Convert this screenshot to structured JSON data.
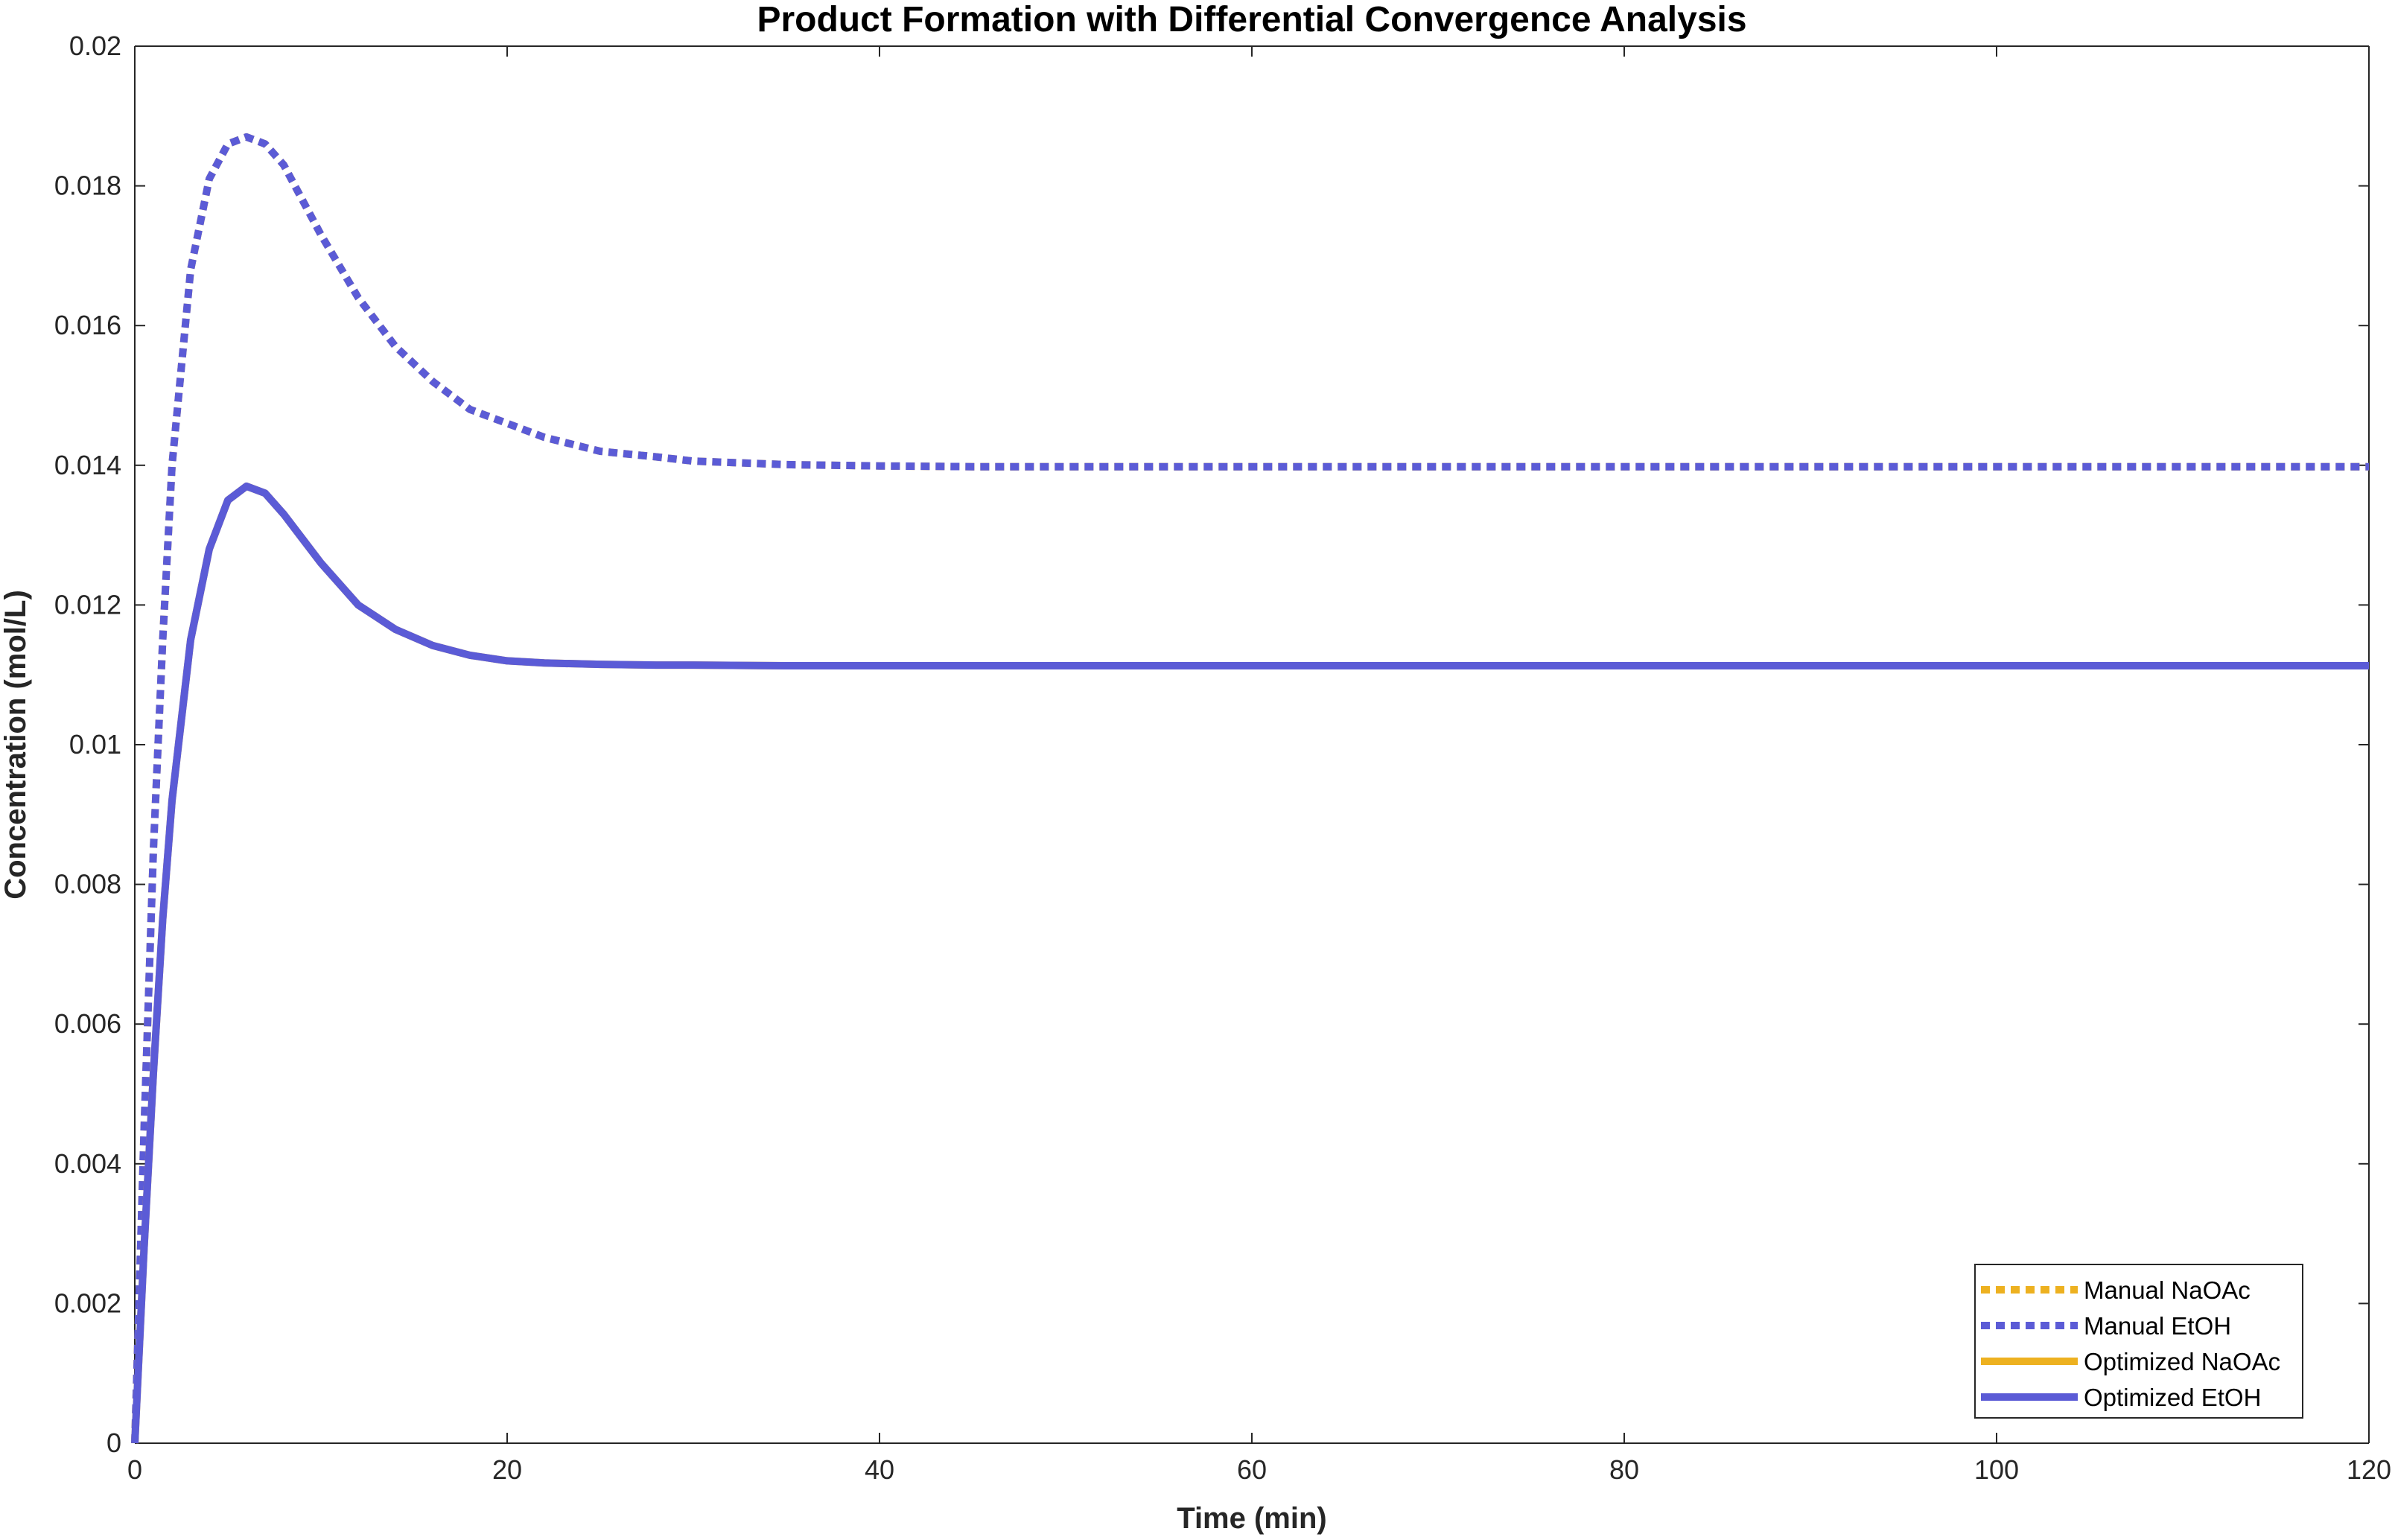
{
  "chart_data": {
    "type": "line",
    "title": "Product Formation with Differential Convergence Analysis",
    "xlabel": "Time (min)",
    "ylabel": "Concentration (mol/L)",
    "xlim": [
      0,
      120
    ],
    "ylim": [
      0,
      0.02
    ],
    "xticks": [
      0,
      20,
      40,
      60,
      80,
      100,
      120
    ],
    "xtick_labels": [
      "0",
      "20",
      "40",
      "60",
      "80",
      "100",
      "120"
    ],
    "yticks": [
      0,
      0.002,
      0.004,
      0.006,
      0.008,
      0.01,
      0.012,
      0.014,
      0.016,
      0.018,
      0.02
    ],
    "ytick_labels": [
      "0",
      "0.002",
      "0.004",
      "0.006",
      "0.008",
      "0.01",
      "0.012",
      "0.014",
      "0.016",
      "0.018",
      "0.02"
    ],
    "grid": false,
    "legend_position": "bottom-right",
    "series": [
      {
        "name": "Manual NaOAc",
        "color": "#EDB120",
        "style": "dotted",
        "x": [
          0,
          0.5,
          1,
          1.5,
          2,
          3,
          4,
          5,
          6,
          7,
          8,
          9,
          10,
          12,
          14,
          16,
          18,
          20,
          22,
          25,
          28,
          30,
          35,
          40,
          45,
          50,
          60,
          70,
          80,
          90,
          100,
          110,
          120
        ],
        "y": [
          0,
          0.0045,
          0.0085,
          0.0115,
          0.014,
          0.0168,
          0.0181,
          0.0186,
          0.0187,
          0.0186,
          0.0183,
          0.0178,
          0.0173,
          0.0164,
          0.0157,
          0.0152,
          0.0148,
          0.0146,
          0.0144,
          0.0142,
          0.01412,
          0.01406,
          0.01401,
          0.01399,
          0.01398,
          0.01398,
          0.01398,
          0.01398,
          0.01398,
          0.01398,
          0.01398,
          0.01398,
          0.01398
        ]
      },
      {
        "name": "Manual EtOH",
        "color": "#5B5BD6",
        "style": "dotted",
        "x": [
          0,
          0.5,
          1,
          1.5,
          2,
          3,
          4,
          5,
          6,
          7,
          8,
          9,
          10,
          12,
          14,
          16,
          18,
          20,
          22,
          25,
          28,
          30,
          35,
          40,
          45,
          50,
          60,
          70,
          80,
          90,
          100,
          110,
          120
        ],
        "y": [
          0,
          0.0045,
          0.0085,
          0.0115,
          0.014,
          0.0168,
          0.0181,
          0.0186,
          0.0187,
          0.0186,
          0.0183,
          0.0178,
          0.0173,
          0.0164,
          0.0157,
          0.0152,
          0.0148,
          0.0146,
          0.0144,
          0.0142,
          0.01412,
          0.01406,
          0.01401,
          0.01399,
          0.01398,
          0.01398,
          0.01398,
          0.01398,
          0.01398,
          0.01398,
          0.01398,
          0.01398,
          0.01398
        ]
      },
      {
        "name": "Optimized NaOAc",
        "color": "#EDB120",
        "style": "solid",
        "x": [
          0,
          0.5,
          1,
          1.5,
          2,
          3,
          4,
          5,
          6,
          7,
          8,
          9,
          10,
          12,
          14,
          16,
          18,
          20,
          22,
          25,
          28,
          30,
          35,
          40,
          45,
          50,
          60,
          70,
          80,
          90,
          100,
          110,
          120
        ],
        "y": [
          0,
          0.0028,
          0.0053,
          0.0075,
          0.0092,
          0.0115,
          0.0128,
          0.0135,
          0.0137,
          0.0136,
          0.0133,
          0.01295,
          0.0126,
          0.012,
          0.01165,
          0.01142,
          0.01128,
          0.0112,
          0.01117,
          0.01115,
          0.01114,
          0.01114,
          0.01113,
          0.01113,
          0.01113,
          0.01113,
          0.01113,
          0.01113,
          0.01113,
          0.01113,
          0.01113,
          0.01113,
          0.01113
        ]
      },
      {
        "name": "Optimized EtOH",
        "color": "#5B5BD6",
        "style": "solid",
        "x": [
          0,
          0.5,
          1,
          1.5,
          2,
          3,
          4,
          5,
          6,
          7,
          8,
          9,
          10,
          12,
          14,
          16,
          18,
          20,
          22,
          25,
          28,
          30,
          35,
          40,
          45,
          50,
          60,
          70,
          80,
          90,
          100,
          110,
          120
        ],
        "y": [
          0,
          0.0028,
          0.0053,
          0.0075,
          0.0092,
          0.0115,
          0.0128,
          0.0135,
          0.0137,
          0.0136,
          0.0133,
          0.01295,
          0.0126,
          0.012,
          0.01165,
          0.01142,
          0.01128,
          0.0112,
          0.01117,
          0.01115,
          0.01114,
          0.01114,
          0.01113,
          0.01113,
          0.01113,
          0.01113,
          0.01113,
          0.01113,
          0.01113,
          0.01113,
          0.01113,
          0.01113,
          0.01113
        ]
      }
    ]
  }
}
